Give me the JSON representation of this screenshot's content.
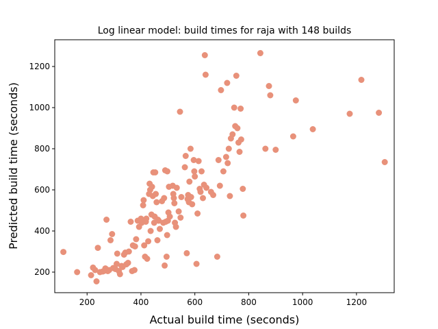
{
  "chart_data": {
    "type": "scatter",
    "title": "Log linear model: build times for raja with 148 builds",
    "xlabel": "Actual build time (seconds)",
    "ylabel": "Predicted build time (seconds)",
    "xlim": [
      80,
      1340
    ],
    "ylim": [
      100,
      1330
    ],
    "xticks": [
      200,
      400,
      600,
      800,
      1000,
      1200
    ],
    "yticks": [
      200,
      400,
      600,
      800,
      1000,
      1200
    ],
    "grid": false,
    "marker_color": "#e8917a",
    "points": [
      [
        112,
        298
      ],
      [
        163,
        200
      ],
      [
        215,
        185
      ],
      [
        222,
        222
      ],
      [
        230,
        210
      ],
      [
        235,
        155
      ],
      [
        240,
        318
      ],
      [
        248,
        200
      ],
      [
        258,
        203
      ],
      [
        262,
        205
      ],
      [
        268,
        218
      ],
      [
        272,
        455
      ],
      [
        277,
        205
      ],
      [
        282,
        210
      ],
      [
        287,
        355
      ],
      [
        293,
        385
      ],
      [
        297,
        220
      ],
      [
        305,
        215
      ],
      [
        310,
        240
      ],
      [
        312,
        290
      ],
      [
        318,
        205
      ],
      [
        322,
        190
      ],
      [
        328,
        230
      ],
      [
        332,
        225
      ],
      [
        337,
        285
      ],
      [
        342,
        295
      ],
      [
        346,
        238
      ],
      [
        352,
        245
      ],
      [
        355,
        300
      ],
      [
        362,
        445
      ],
      [
        367,
        205
      ],
      [
        370,
        330
      ],
      [
        376,
        210
      ],
      [
        378,
        325
      ],
      [
        382,
        360
      ],
      [
        388,
        450
      ],
      [
        393,
        420
      ],
      [
        400,
        460
      ],
      [
        403,
        440
      ],
      [
        408,
        525
      ],
      [
        410,
        550
      ],
      [
        412,
        330
      ],
      [
        415,
        275
      ],
      [
        418,
        445
      ],
      [
        420,
        460
      ],
      [
        423,
        265
      ],
      [
        427,
        350
      ],
      [
        430,
        580
      ],
      [
        432,
        630
      ],
      [
        434,
        600
      ],
      [
        436,
        400
      ],
      [
        439,
        480
      ],
      [
        441,
        615
      ],
      [
        444,
        570
      ],
      [
        446,
        685
      ],
      [
        449,
        440
      ],
      [
        451,
        470
      ],
      [
        453,
        685
      ],
      [
        455,
        580
      ],
      [
        458,
        540
      ],
      [
        461,
        355
      ],
      [
        463,
        455
      ],
      [
        466,
        450
      ],
      [
        470,
        410
      ],
      [
        478,
        545
      ],
      [
        483,
        440
      ],
      [
        486,
        560
      ],
      [
        488,
        232
      ],
      [
        490,
        695
      ],
      [
        492,
        445
      ],
      [
        495,
        275
      ],
      [
        497,
        380
      ],
      [
        498,
        690
      ],
      [
        500,
        450
      ],
      [
        502,
        490
      ],
      [
        504,
        615
      ],
      [
        507,
        470
      ],
      [
        518,
        620
      ],
      [
        520,
        580
      ],
      [
        522,
        560
      ],
      [
        524,
        535
      ],
      [
        526,
        440
      ],
      [
        530,
        420
      ],
      [
        533,
        610
      ],
      [
        540,
        495
      ],
      [
        545,
        980
      ],
      [
        547,
        465
      ],
      [
        550,
        565
      ],
      [
        563,
        710
      ],
      [
        566,
        765
      ],
      [
        570,
        292
      ],
      [
        573,
        555
      ],
      [
        575,
        575
      ],
      [
        578,
        540
      ],
      [
        580,
        640
      ],
      [
        584,
        800
      ],
      [
        586,
        565
      ],
      [
        590,
        530
      ],
      [
        596,
        745
      ],
      [
        598,
        690
      ],
      [
        600,
        665
      ],
      [
        606,
        240
      ],
      [
        610,
        485
      ],
      [
        614,
        740
      ],
      [
        618,
        605
      ],
      [
        621,
        590
      ],
      [
        625,
        690
      ],
      [
        630,
        560
      ],
      [
        634,
        625
      ],
      [
        637,
        1255
      ],
      [
        640,
        1160
      ],
      [
        643,
        610
      ],
      [
        660,
        590
      ],
      [
        668,
        575
      ],
      [
        683,
        275
      ],
      [
        688,
        745
      ],
      [
        693,
        620
      ],
      [
        697,
        1085
      ],
      [
        706,
        690
      ],
      [
        716,
        760
      ],
      [
        720,
        1120
      ],
      [
        722,
        730
      ],
      [
        726,
        800
      ],
      [
        730,
        570
      ],
      [
        734,
        850
      ],
      [
        740,
        870
      ],
      [
        746,
        1000
      ],
      [
        750,
        910
      ],
      [
        754,
        1155
      ],
      [
        758,
        900
      ],
      [
        762,
        830
      ],
      [
        766,
        785
      ],
      [
        770,
        995
      ],
      [
        772,
        845
      ],
      [
        778,
        605
      ],
      [
        780,
        475
      ],
      [
        843,
        1265
      ],
      [
        862,
        800
      ],
      [
        875,
        1105
      ],
      [
        880,
        1060
      ],
      [
        900,
        795
      ],
      [
        965,
        860
      ],
      [
        975,
        1035
      ],
      [
        1038,
        895
      ],
      [
        1175,
        970
      ],
      [
        1218,
        1135
      ],
      [
        1283,
        975
      ],
      [
        1305,
        735
      ]
    ]
  }
}
